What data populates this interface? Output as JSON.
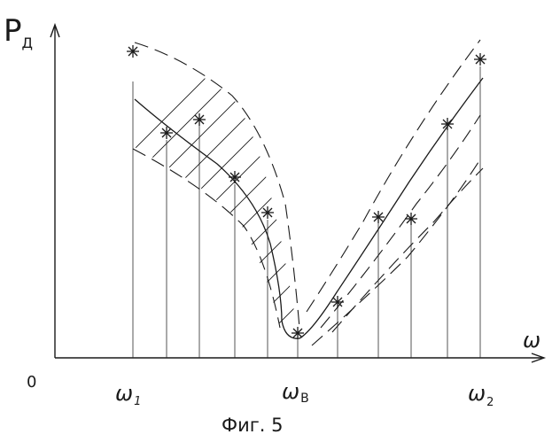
{
  "axes": {
    "y_label_main": "P",
    "y_label_sub": "Д",
    "x_label": "ω",
    "origin_label": "0"
  },
  "ticks": [
    {
      "main": "ω",
      "sub": "1"
    },
    {
      "main": "ω",
      "sub": "B"
    },
    {
      "main": "ω",
      "sub": "2"
    }
  ],
  "caption": "Фиг. 5"
}
